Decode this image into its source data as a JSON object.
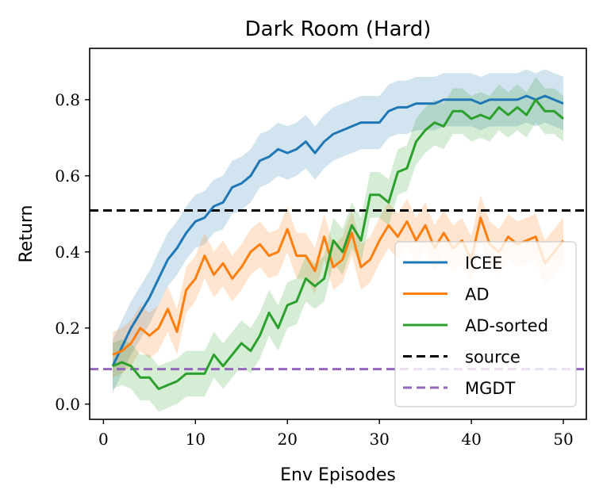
{
  "chart_data": {
    "type": "line",
    "title": "Dark Room (Hard)",
    "xlabel": "Env Episodes",
    "ylabel": "Return",
    "xlim": [
      -1.5,
      52.5
    ],
    "ylim": [
      -0.04,
      0.935
    ],
    "xticks": [
      0,
      10,
      20,
      30,
      40,
      50
    ],
    "xtick_labels": [
      "0",
      "10",
      "20",
      "30",
      "40",
      "50"
    ],
    "yticks": [
      0.0,
      0.2,
      0.4,
      0.6,
      0.8
    ],
    "ytick_labels": [
      "0.0",
      "0.2",
      "0.4",
      "0.6",
      "0.8"
    ],
    "legend_position": "lower-right",
    "legend": [
      "ICEE",
      "AD",
      "AD-sorted",
      "source",
      "MGDT"
    ],
    "x": [
      1,
      2,
      3,
      4,
      5,
      6,
      7,
      8,
      9,
      10,
      11,
      12,
      13,
      14,
      15,
      16,
      17,
      18,
      19,
      20,
      21,
      22,
      23,
      24,
      25,
      26,
      27,
      28,
      29,
      30,
      31,
      32,
      33,
      34,
      35,
      36,
      37,
      38,
      39,
      40,
      41,
      42,
      43,
      44,
      45,
      46,
      47,
      48,
      49,
      50
    ],
    "series": [
      {
        "name": "ICEE",
        "color": "#1f77b4",
        "values": [
          0.1,
          0.15,
          0.2,
          0.24,
          0.28,
          0.33,
          0.38,
          0.41,
          0.45,
          0.48,
          0.49,
          0.52,
          0.53,
          0.57,
          0.58,
          0.6,
          0.64,
          0.65,
          0.67,
          0.66,
          0.67,
          0.69,
          0.66,
          0.69,
          0.71,
          0.72,
          0.73,
          0.74,
          0.74,
          0.74,
          0.77,
          0.78,
          0.78,
          0.79,
          0.79,
          0.79,
          0.8,
          0.8,
          0.8,
          0.8,
          0.79,
          0.8,
          0.8,
          0.8,
          0.8,
          0.81,
          0.8,
          0.81,
          0.8,
          0.79
        ],
        "band": 0.07
      },
      {
        "name": "AD",
        "color": "#ff7f0e",
        "values": [
          0.13,
          0.14,
          0.16,
          0.2,
          0.18,
          0.2,
          0.25,
          0.19,
          0.3,
          0.33,
          0.39,
          0.34,
          0.37,
          0.33,
          0.36,
          0.4,
          0.42,
          0.39,
          0.4,
          0.46,
          0.39,
          0.39,
          0.35,
          0.44,
          0.36,
          0.38,
          0.45,
          0.36,
          0.38,
          0.43,
          0.47,
          0.44,
          0.48,
          0.43,
          0.47,
          0.41,
          0.45,
          0.41,
          0.43,
          0.38,
          0.49,
          0.42,
          0.4,
          0.44,
          0.42,
          0.43,
          0.44,
          0.37,
          0.4,
          0.43
        ],
        "band": 0.06
      },
      {
        "name": "AD-sorted",
        "color": "#2ca02c",
        "values": [
          0.1,
          0.11,
          0.1,
          0.07,
          0.07,
          0.04,
          0.05,
          0.06,
          0.08,
          0.08,
          0.08,
          0.13,
          0.1,
          0.13,
          0.16,
          0.14,
          0.18,
          0.24,
          0.2,
          0.26,
          0.27,
          0.33,
          0.31,
          0.33,
          0.43,
          0.4,
          0.47,
          0.43,
          0.55,
          0.55,
          0.53,
          0.61,
          0.62,
          0.69,
          0.72,
          0.74,
          0.73,
          0.77,
          0.77,
          0.75,
          0.76,
          0.75,
          0.78,
          0.76,
          0.78,
          0.76,
          0.8,
          0.77,
          0.77,
          0.75
        ],
        "band": 0.06
      }
    ],
    "hlines": [
      {
        "name": "source",
        "y": 0.509,
        "color": "#000000"
      },
      {
        "name": "MGDT",
        "y": 0.092,
        "color": "#9467bd"
      }
    ]
  }
}
